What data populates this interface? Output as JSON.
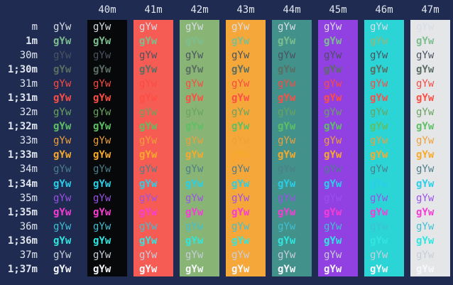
{
  "meta": {
    "app": "terminal-ansi-color-test",
    "cell_text": "gYw"
  },
  "theme": {
    "page_bg": "#1f2b50",
    "label_color": "#e0e5ee"
  },
  "columns": [
    {
      "label": "40m",
      "bg": "#07080a"
    },
    {
      "label": "41m",
      "bg": "#f75c54"
    },
    {
      "label": "42m",
      "bg": "#88b575"
    },
    {
      "label": "43m",
      "bg": "#f5a73a"
    },
    {
      "label": "44m",
      "bg": "#42918a"
    },
    {
      "label": "45m",
      "bg": "#9140e2"
    },
    {
      "label": "46m",
      "bg": "#2bd5d5"
    },
    {
      "label": "47m",
      "bg": "#e5e6e8"
    }
  ],
  "rows": [
    {
      "label": "m",
      "fg": "#d9dde6",
      "bold": false
    },
    {
      "label": "1m",
      "fg": "#7dbe8f",
      "bold": true
    },
    {
      "label": "30m",
      "fg": "#4a5260",
      "bold": false
    },
    {
      "label": "1;30m",
      "fg": "#5b6e63",
      "bold": true
    },
    {
      "label": "31m",
      "fg": "#fa4b42",
      "bold": false
    },
    {
      "label": "1;31m",
      "fg": "#fd4e45",
      "bold": true
    },
    {
      "label": "32m",
      "fg": "#6aa360",
      "bold": false
    },
    {
      "label": "1;32m",
      "fg": "#5dc065",
      "bold": true
    },
    {
      "label": "33m",
      "fg": "#efa038",
      "bold": false
    },
    {
      "label": "1;33m",
      "fg": "#f9a92a",
      "bold": true
    },
    {
      "label": "34m",
      "fg": "#4d7e8a",
      "bold": false
    },
    {
      "label": "1;34m",
      "fg": "#29cfe8",
      "bold": true
    },
    {
      "label": "35m",
      "fg": "#9b51e8",
      "bold": false
    },
    {
      "label": "1;35m",
      "fg": "#f73cd6",
      "bold": true
    },
    {
      "label": "36m",
      "fg": "#3fc0d3",
      "bold": false
    },
    {
      "label": "1;36m",
      "fg": "#30e6e0",
      "bold": true
    },
    {
      "label": "37m",
      "fg": "#c8ced9",
      "bold": false
    },
    {
      "label": "1;37m",
      "fg": "#f5f7fa",
      "bold": true
    }
  ]
}
